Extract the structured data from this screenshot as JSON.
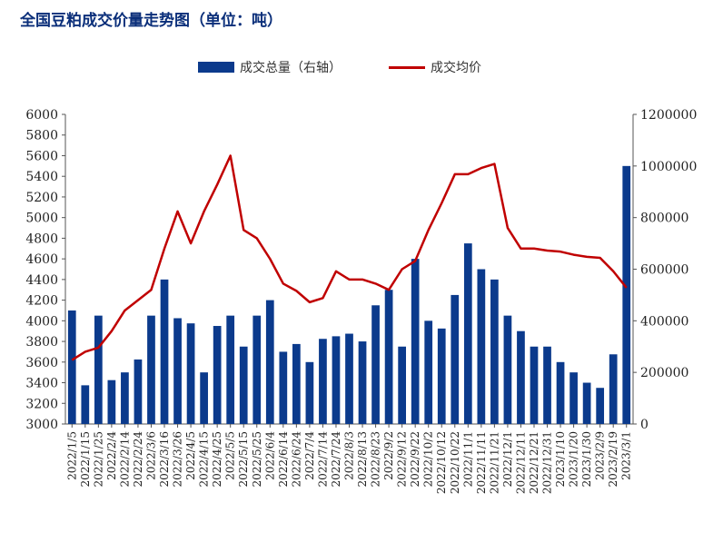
{
  "title": "全国豆粕成交价量走势图（单位：吨）",
  "legend": {
    "bar_label": "成交总量（右轴）",
    "line_label": "成交均价"
  },
  "colors": {
    "bar": "#0b3a8c",
    "line": "#c00000",
    "title": "#0b2f7a"
  },
  "chart_data": {
    "type": "bar+line",
    "left_axis": {
      "min": 3000,
      "max": 6000,
      "step": 200
    },
    "right_axis": {
      "min": 0,
      "max": 1200000,
      "step": 200000
    },
    "categories": [
      "2022/1/5",
      "2022/1/15",
      "2022/1/25",
      "2022/2/4",
      "2022/2/14",
      "2022/2/24",
      "2022/3/6",
      "2022/3/16",
      "2022/3/26",
      "2022/4/5",
      "2022/4/15",
      "2022/4/25",
      "2022/5/5",
      "2022/5/15",
      "2022/5/25",
      "2022/6/4",
      "2022/6/14",
      "2022/6/24",
      "2022/7/4",
      "2022/7/14",
      "2022/7/24",
      "2022/8/3",
      "2022/8/13",
      "2022/8/23",
      "2022/9/2",
      "2022/9/12",
      "2022/9/22",
      "2022/10/2",
      "2022/10/12",
      "2022/10/22",
      "2022/11/1",
      "2022/11/11",
      "2022/11/21",
      "2022/12/1",
      "2022/12/11",
      "2022/12/21",
      "2022/12/31",
      "2023/1/10",
      "2023/1/20",
      "2023/1/30",
      "2023/2/9",
      "2023/2/19",
      "2023/3/1"
    ],
    "series": [
      {
        "name": "成交均价",
        "axis": "left",
        "kind": "line",
        "values": [
          3620,
          3700,
          3740,
          3900,
          4100,
          4200,
          4300,
          4700,
          5060,
          4750,
          5060,
          5320,
          5600,
          4880,
          4800,
          4600,
          4360,
          4290,
          4180,
          4220,
          4480,
          4400,
          4400,
          4360,
          4300,
          4500,
          4580,
          4880,
          5140,
          5420,
          5420,
          5480,
          5520,
          4900,
          4700,
          4700,
          4680,
          4670,
          4640,
          4620,
          4610,
          4480,
          4320
        ]
      },
      {
        "name": "成交总量（右轴）",
        "axis": "right",
        "kind": "bar",
        "values": [
          440000,
          150000,
          420000,
          170000,
          200000,
          250000,
          420000,
          560000,
          410000,
          390000,
          200000,
          380000,
          420000,
          300000,
          420000,
          480000,
          280000,
          310000,
          240000,
          330000,
          340000,
          350000,
          320000,
          460000,
          520000,
          300000,
          640000,
          400000,
          370000,
          500000,
          700000,
          600000,
          560000,
          420000,
          360000,
          300000,
          300000,
          240000,
          200000,
          160000,
          140000,
          270000,
          1000000
        ]
      }
    ]
  }
}
